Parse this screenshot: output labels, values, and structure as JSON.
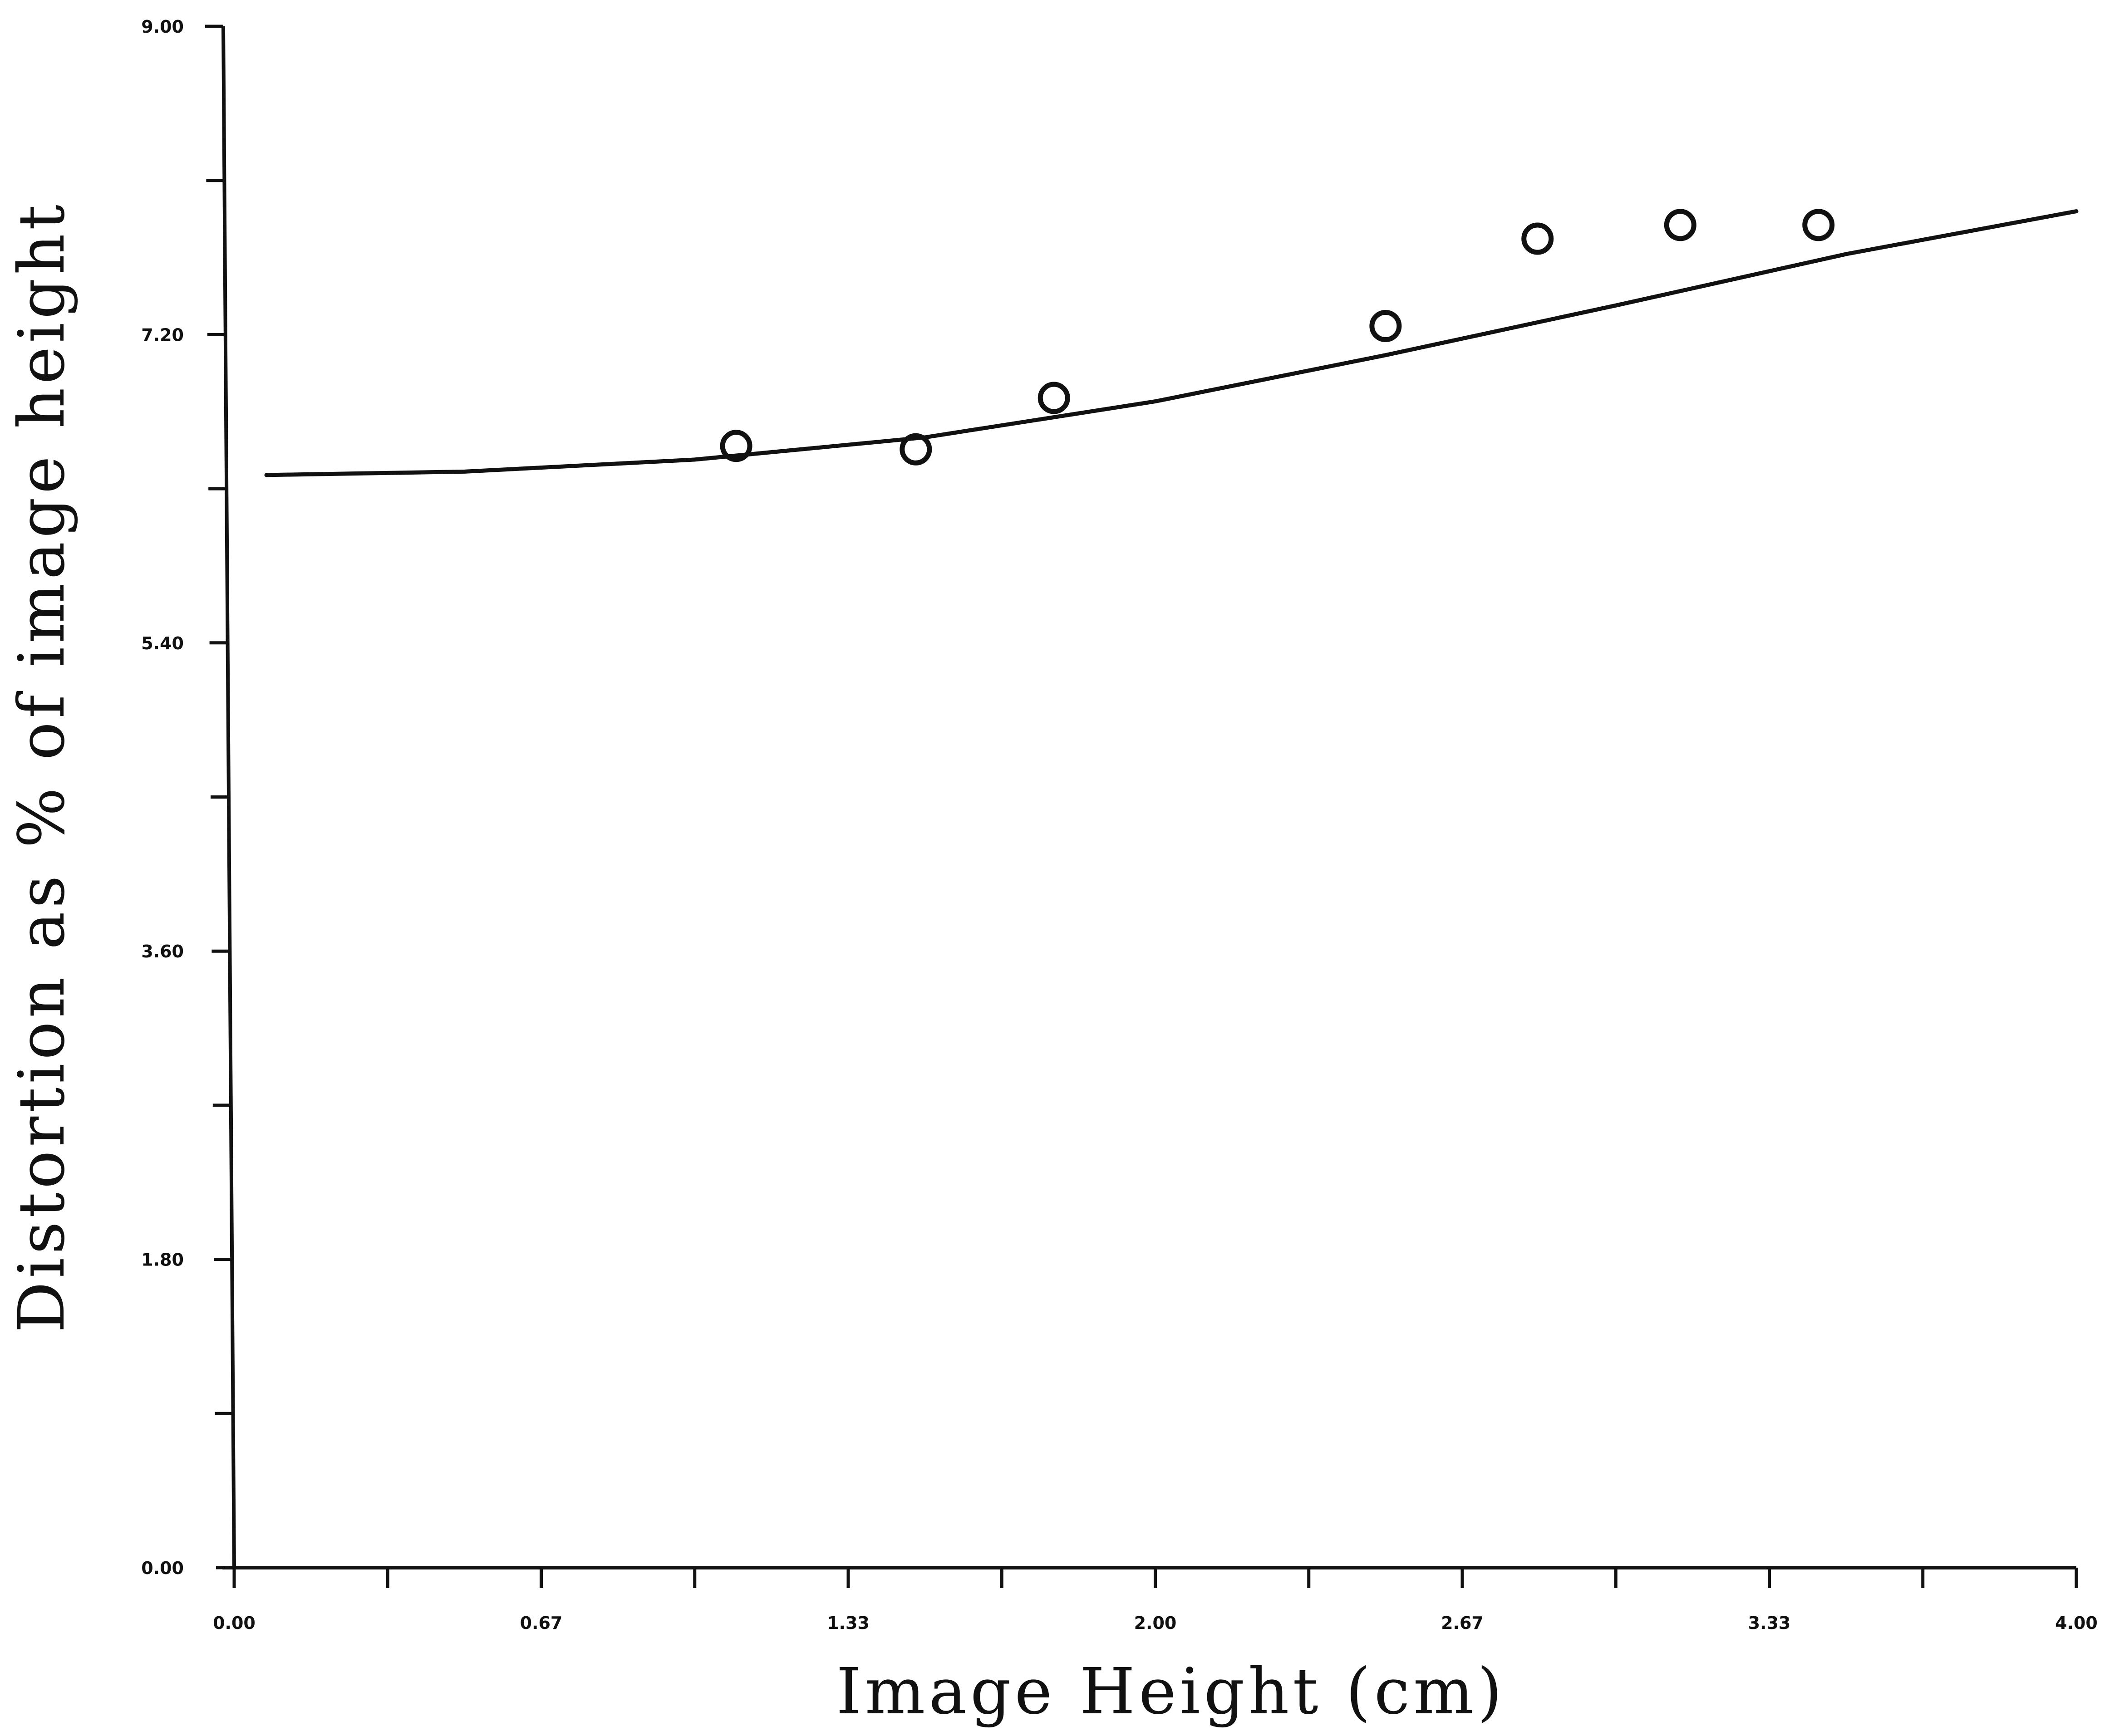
{
  "chart_data": {
    "type": "scatter",
    "title": "",
    "xlabel": "Image Height (cm)",
    "ylabel": "Distortion as % of image height",
    "xlim": [
      0,
      4
    ],
    "ylim": [
      0,
      9
    ],
    "x_tick_labels": [
      "0.00",
      "0.67",
      "1.33",
      "2.00",
      "2.67",
      "3.33",
      "4.00"
    ],
    "y_tick_labels": [
      "0.00",
      "1.80",
      "3.60",
      "5.40",
      "7.20",
      "9.00"
    ],
    "grid": false,
    "series": [
      {
        "marker": "open-circle",
        "x": [
          1.09,
          1.48,
          1.78,
          2.5,
          2.83,
          3.14,
          3.44
        ],
        "y": [
          6.55,
          6.53,
          6.83,
          7.25,
          7.76,
          7.84,
          7.84
        ]
      },
      {
        "marker": "line",
        "x": [
          0.07,
          0.5,
          1.0,
          1.5,
          2.0,
          2.5,
          3.0,
          3.5,
          4.0
        ],
        "y": [
          6.38,
          6.4,
          6.47,
          6.6,
          6.81,
          7.08,
          7.37,
          7.67,
          7.92
        ]
      }
    ],
    "colors": {
      "ink": "#111111",
      "background": "#ffffff"
    }
  }
}
